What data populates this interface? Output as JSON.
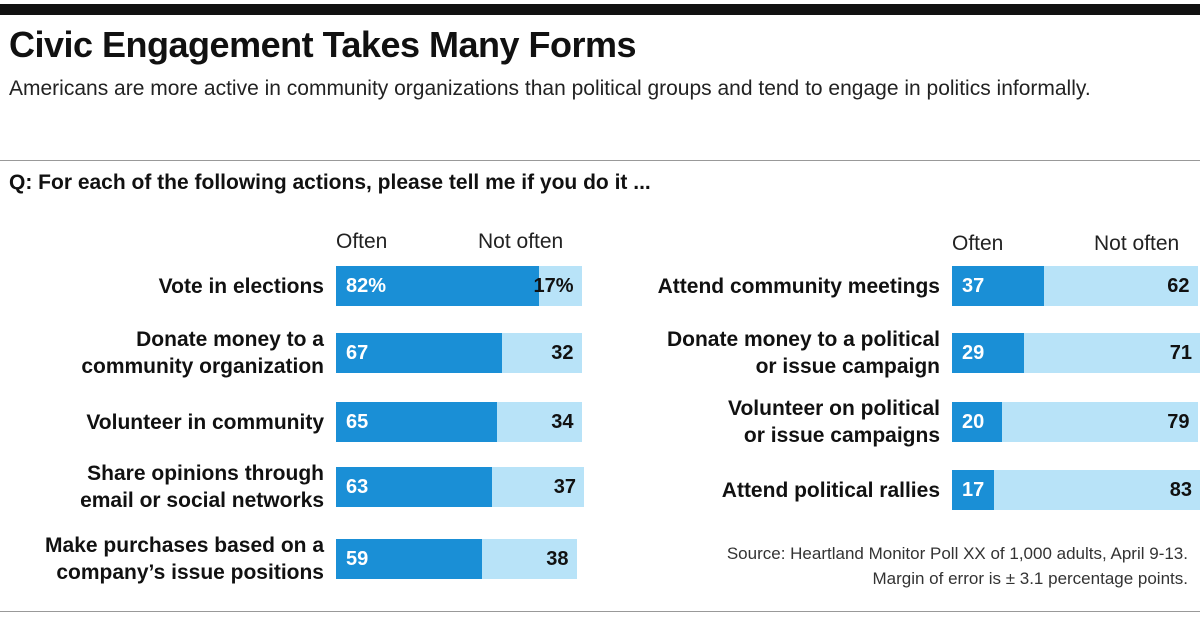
{
  "title": "Civic Engagement Takes Many Forms",
  "subtitle": "Americans are more active in community organizations than political groups and tend to engage in politics informally.",
  "question": "Q: For each of the following actions, please tell me if you do it  ...",
  "columns": {
    "often": "Often",
    "not_often": "Not often"
  },
  "source": {
    "line1": "Source: Heartland Monitor Poll XX of 1,000 adults, April 9-13.",
    "line2": "Margin of error is ± 3.1 percentage points."
  },
  "colors": {
    "often": "#1a8fd6",
    "not_often": "#b8e3f8"
  },
  "chart_data": [
    {
      "type": "bar",
      "stacked": true,
      "orientation": "horizontal",
      "categories": [
        "Vote in elections",
        "Donate money to a community organization",
        "Volunteer in community",
        "Share opinions through email or social networks",
        "Make purchases based on a company’s issue positions"
      ],
      "label_lines": [
        [
          "Vote in elections"
        ],
        [
          "Donate money to a",
          "community organization"
        ],
        [
          "Volunteer in community"
        ],
        [
          "Share opinions through",
          "email or social networks"
        ],
        [
          "Make purchases based on a",
          "company’s issue positions"
        ]
      ],
      "series": [
        {
          "name": "Often",
          "values": [
            82,
            67,
            65,
            63,
            59
          ],
          "labels": [
            "82%",
            "67",
            "65",
            "63",
            "59"
          ]
        },
        {
          "name": "Not often",
          "values": [
            17,
            32,
            34,
            37,
            38
          ],
          "labels": [
            "17%",
            "32",
            "34",
            "37",
            "38"
          ]
        }
      ],
      "xlim": [
        0,
        100
      ]
    },
    {
      "type": "bar",
      "stacked": true,
      "orientation": "horizontal",
      "categories": [
        "Attend community meetings",
        "Donate money to a political or issue campaign",
        "Volunteer on political or issue campaigns",
        "Attend political rallies"
      ],
      "label_lines": [
        [
          "Attend community meetings"
        ],
        [
          "Donate money to a political",
          "or issue campaign"
        ],
        [
          "Volunteer on political",
          "or issue campaigns"
        ],
        [
          "Attend political rallies"
        ]
      ],
      "series": [
        {
          "name": "Often",
          "values": [
            37,
            29,
            20,
            17
          ],
          "labels": [
            "37",
            "29",
            "20",
            "17"
          ]
        },
        {
          "name": "Not often",
          "values": [
            62,
            71,
            79,
            83
          ],
          "labels": [
            "62",
            "71",
            "79",
            "83"
          ]
        }
      ],
      "xlim": [
        0,
        100
      ]
    }
  ]
}
